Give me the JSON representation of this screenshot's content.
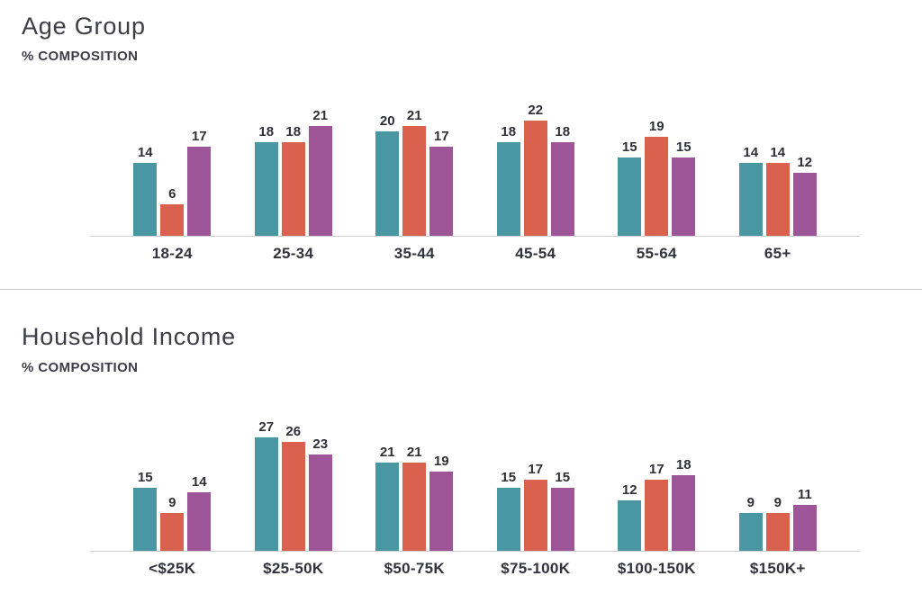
{
  "colors": {
    "series_teal": "#4897A2",
    "series_orange": "#D9614E",
    "series_purple": "#9D5598",
    "axis_line": "#cfcfcf",
    "divider_line": "#cccccc",
    "title_text": "#3d3d47",
    "label_text": "#33333d"
  },
  "chart_data": [
    {
      "type": "bar",
      "title": "Age Group",
      "subtitle": "% COMPOSITION",
      "categories": [
        "18-24",
        "25-34",
        "35-44",
        "45-54",
        "55-64",
        "65+"
      ],
      "series": [
        {
          "name": "teal-series",
          "color": "#4897A2",
          "values": [
            14,
            18,
            20,
            18,
            15,
            14
          ]
        },
        {
          "name": "orange-series",
          "color": "#D9614E",
          "values": [
            6,
            18,
            21,
            22,
            19,
            14
          ]
        },
        {
          "name": "purple-series",
          "color": "#9D5598",
          "values": [
            17,
            21,
            17,
            18,
            15,
            12
          ]
        }
      ],
      "xlabel": "",
      "ylabel": "% composition",
      "ylim": [
        0,
        26
      ],
      "grid": false,
      "legend": "none",
      "value_labels": true
    },
    {
      "type": "bar",
      "title": "Household Income",
      "subtitle": "% COMPOSITION",
      "categories": [
        "<$25K",
        "$25-50K",
        "$50-75K",
        "$75-100K",
        "$100-150K",
        "$150K+"
      ],
      "series": [
        {
          "name": "teal-series",
          "color": "#4897A2",
          "values": [
            15,
            27,
            21,
            15,
            12,
            9
          ]
        },
        {
          "name": "orange-series",
          "color": "#D9614E",
          "values": [
            9,
            26,
            21,
            17,
            17,
            9
          ]
        },
        {
          "name": "purple-series",
          "color": "#9D5598",
          "values": [
            14,
            23,
            19,
            15,
            18,
            11
          ]
        }
      ],
      "xlabel": "",
      "ylabel": "% composition",
      "ylim": [
        0,
        32
      ],
      "grid": false,
      "legend": "none",
      "value_labels": true
    }
  ]
}
